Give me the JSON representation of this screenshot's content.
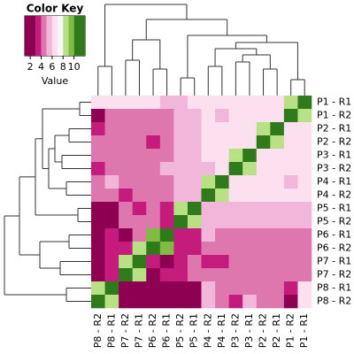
{
  "chart_data": {
    "type": "heatmap",
    "key_title": "Color Key",
    "key_label": "Value",
    "key_lim": [
      1,
      12
    ],
    "key_ticks": [
      2,
      4,
      6,
      8,
      10
    ],
    "color_breaks": [
      1,
      3,
      4,
      5,
      6,
      7,
      8,
      9,
      10,
      12
    ],
    "colors": [
      "#8e0152",
      "#c51b7d",
      "#de77ae",
      "#f1b6da",
      "#fde0ef",
      "#f7f7f7",
      "#b8e186",
      "#7fbc41",
      "#2f7a1a"
    ],
    "rows": [
      "P1 - R1",
      "P1 - R2",
      "P2 - R1",
      "P2 - R2",
      "P3 - R1",
      "P3 - R2",
      "P4 - R1",
      "P4 - R2",
      "P5 - R1",
      "P5 - R2",
      "P6 - R1",
      "P6 - R2",
      "P7 - R1",
      "P7 - R2",
      "P8 - R1",
      "P8 - R2"
    ],
    "columns": [
      "P8 - R2",
      "P8 - R1",
      "P7 - R2",
      "P7 - R1",
      "P6 - R2",
      "P6 - R1",
      "P5 - R2",
      "P5 - R1",
      "P4 - R2",
      "P4 - R1",
      "P3 - R2",
      "P3 - R1",
      "P2 - R2",
      "P2 - R1",
      "P1 - R2",
      "P1 - R1"
    ],
    "values": [
      [
        6.5,
        6.5,
        6.5,
        6.5,
        6.5,
        5.5,
        5.5,
        6.5,
        6.5,
        6.5,
        6.5,
        6.5,
        6.5,
        6.5,
        8.5,
        11
      ],
      [
        2,
        4.5,
        4.5,
        4.5,
        4.5,
        4.5,
        5.5,
        5.5,
        6.5,
        5.5,
        6.5,
        6.5,
        6.5,
        6.5,
        11,
        8.5
      ],
      [
        3.5,
        4.5,
        4.5,
        4.5,
        4.5,
        4.5,
        5.5,
        5.5,
        6.5,
        6.5,
        6.5,
        6.5,
        8.5,
        11,
        6.5,
        6.5
      ],
      [
        4.5,
        4.5,
        4.5,
        4.5,
        3.5,
        4.5,
        5.5,
        5.5,
        6.5,
        6.5,
        6.5,
        6.5,
        11,
        8.5,
        6.5,
        6.5
      ],
      [
        4.5,
        4.5,
        4.5,
        4.5,
        4.5,
        4.5,
        5.5,
        5.5,
        6.5,
        6.5,
        8.5,
        11,
        6.5,
        6.5,
        6.5,
        6.5
      ],
      [
        3.5,
        4.5,
        4.5,
        4.5,
        4.5,
        5.5,
        5.5,
        5.5,
        5.5,
        6.5,
        11,
        8.5,
        6.5,
        6.5,
        6.5,
        6.5
      ],
      [
        4.5,
        5.5,
        4.5,
        4.5,
        4.5,
        4.5,
        5.5,
        5.5,
        8.5,
        11,
        6.5,
        6.5,
        6.5,
        6.5,
        5.5,
        6.5
      ],
      [
        4.5,
        4.5,
        3.5,
        4.5,
        4.5,
        4.5,
        5.5,
        5.5,
        11,
        8.5,
        6.5,
        6.5,
        6.5,
        6.5,
        6.5,
        6.5
      ],
      [
        2,
        2,
        4.5,
        3.5,
        4.5,
        3.5,
        8.5,
        11,
        5.5,
        5.5,
        5.5,
        5.5,
        5.5,
        5.5,
        5.5,
        5.5
      ],
      [
        2,
        2,
        4.5,
        4.5,
        4.5,
        3.5,
        11,
        8.5,
        5.5,
        5.5,
        5.5,
        5.5,
        5.5,
        5.5,
        5.5,
        5.5
      ],
      [
        2,
        3.5,
        2,
        4.5,
        9.5,
        11,
        3.5,
        3.5,
        5.5,
        4.5,
        4.5,
        4.5,
        4.5,
        4.5,
        4.5,
        4.5
      ],
      [
        2,
        3.5,
        3.5,
        8.5,
        11,
        9.5,
        3.5,
        3.5,
        4.5,
        4.5,
        4.5,
        4.5,
        4.5,
        4.5,
        4.5,
        4.5
      ],
      [
        2,
        3.5,
        8.5,
        11,
        3.5,
        2,
        3.5,
        4.5,
        3.5,
        3.5,
        4.5,
        4.5,
        4.5,
        4.5,
        4.5,
        4.5
      ],
      [
        2,
        3.5,
        11,
        8.5,
        2,
        3.5,
        3.5,
        4.5,
        4.5,
        4.5,
        4.5,
        4.5,
        4.5,
        4.5,
        4.5,
        4.5
      ],
      [
        8.5,
        11,
        2,
        2,
        2,
        2,
        2,
        2,
        5.5,
        4.5,
        4.5,
        4.5,
        4.5,
        4.5,
        3.5,
        6.5
      ],
      [
        11,
        8.5,
        2,
        2,
        2,
        2,
        2,
        2,
        5.5,
        4.5,
        3.5,
        5.5,
        4.5,
        4.5,
        2,
        6.5
      ]
    ]
  }
}
